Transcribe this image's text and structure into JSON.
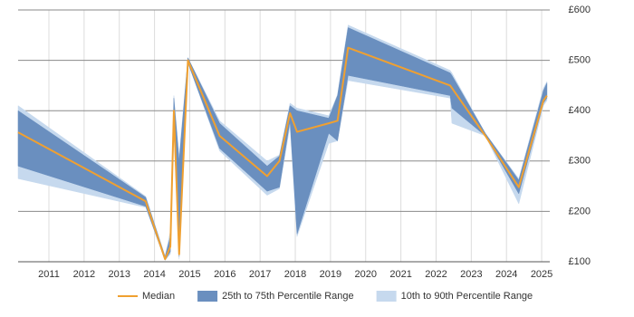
{
  "chart_data": {
    "type": "line",
    "x": [
      2010.125,
      2013.75,
      2014.3,
      2014.45,
      2014.55,
      2014.7,
      2014.95,
      2015.85,
      2017.2,
      2017.55,
      2017.85,
      2018.05,
      2018.95,
      2019.2,
      2019.5,
      2022.4,
      2022.45,
      2023.4,
      2024.35,
      2025.05,
      2025.15
    ],
    "xlim": [
      2010.125,
      2025.23
    ],
    "xticks": [
      2011,
      2012,
      2013,
      2014,
      2015,
      2016,
      2017,
      2018,
      2019,
      2020,
      2021,
      2022,
      2023,
      2024,
      2025
    ],
    "ylim": [
      100,
      600
    ],
    "yticks": [
      {
        "value": 100,
        "label": "£100"
      },
      {
        "value": 200,
        "label": "£200"
      },
      {
        "value": 300,
        "label": "£300"
      },
      {
        "value": 400,
        "label": "£400"
      },
      {
        "value": 500,
        "label": "£500"
      },
      {
        "value": 600,
        "label": "£600"
      }
    ],
    "grid": true,
    "legend": "bottom",
    "series": [
      {
        "name": "Median",
        "color": "#f0a030",
        "values": [
          357,
          220,
          105,
          130,
          400,
          115,
          500,
          350,
          270,
          300,
          395,
          358,
          375,
          380,
          525,
          450,
          445,
          350,
          248,
          420,
          430
        ]
      }
    ],
    "bands": [
      {
        "name": "10th to 90th Percentile Range",
        "color": "#c6d9ee",
        "lower": [
          265,
          208,
          103,
          115,
          360,
          105,
          495,
          320,
          232,
          245,
          370,
          150,
          335,
          340,
          460,
          425,
          375,
          350,
          215,
          410,
          420
        ],
        "upper": [
          410,
          230,
          112,
          160,
          430,
          310,
          505,
          380,
          300,
          312,
          415,
          405,
          390,
          432,
          570,
          480,
          475,
          355,
          265,
          445,
          458
        ]
      },
      {
        "name": "25th to 75th Percentile Range",
        "color": "#6a8fbf",
        "lower": [
          290,
          210,
          103,
          120,
          370,
          110,
          495,
          325,
          240,
          248,
          380,
          155,
          355,
          340,
          470,
          430,
          405,
          350,
          235,
          415,
          425
        ],
        "upper": [
          400,
          228,
          110,
          150,
          425,
          300,
          505,
          375,
          290,
          310,
          410,
          400,
          385,
          430,
          565,
          475,
          470,
          355,
          262,
          440,
          455
        ]
      }
    ]
  }
}
